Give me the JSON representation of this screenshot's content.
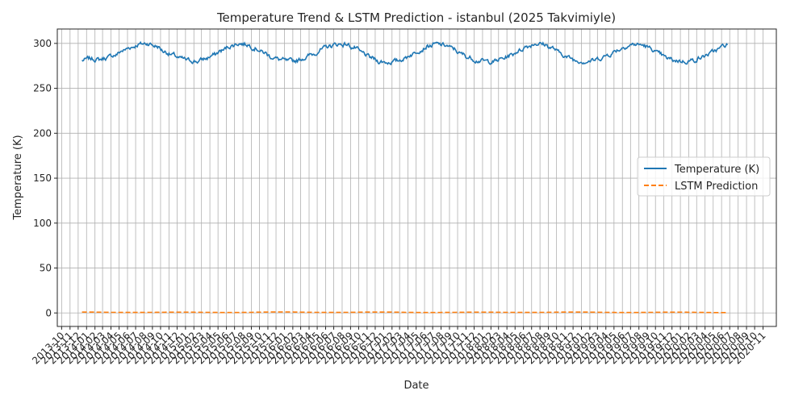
{
  "chart_data": {
    "type": "line",
    "title": "Temperature Trend & LSTM Prediction - istanbul (2025 Takvimiyle)",
    "xlabel": "Date",
    "ylabel": "Temperature (K)",
    "x_range": [
      "2013-09-15",
      "2020-12-20"
    ],
    "data_range": [
      "2013-12-15",
      "2020-06-25"
    ],
    "ylim": [
      -15,
      316
    ],
    "y_ticks": [
      0,
      50,
      100,
      150,
      200,
      250,
      300
    ],
    "x_ticks": [
      "2013-10",
      "2013-11",
      "2013-12",
      "2014-01",
      "2014-02",
      "2014-03",
      "2014-04",
      "2014-05",
      "2014-06",
      "2014-07",
      "2014-08",
      "2014-09",
      "2014-10",
      "2014-11",
      "2014-12",
      "2015-01",
      "2015-02",
      "2015-03",
      "2015-04",
      "2015-05",
      "2015-06",
      "2015-07",
      "2015-08",
      "2015-09",
      "2015-10",
      "2015-11",
      "2015-12",
      "2016-01",
      "2016-02",
      "2016-03",
      "2016-04",
      "2016-05",
      "2016-06",
      "2016-07",
      "2016-08",
      "2016-09",
      "2016-10",
      "2016-11",
      "2016-12",
      "2017-01",
      "2017-02",
      "2017-03",
      "2017-04",
      "2017-05",
      "2017-06",
      "2017-07",
      "2017-08",
      "2017-09",
      "2017-10",
      "2017-11",
      "2017-12",
      "2018-01",
      "2018-02",
      "2018-03",
      "2018-04",
      "2018-05",
      "2018-06",
      "2018-07",
      "2018-08",
      "2018-09",
      "2018-10",
      "2018-11",
      "2018-12",
      "2019-01",
      "2019-02",
      "2019-03",
      "2019-04",
      "2019-05",
      "2019-06",
      "2019-07",
      "2019-08",
      "2019-09",
      "2019-10",
      "2019-11",
      "2019-12",
      "2020-01",
      "2020-02",
      "2020-03",
      "2020-04",
      "2020-05",
      "2020-06",
      "2020-07",
      "2020-08",
      "2020-09",
      "2020-10",
      "2020-11"
    ],
    "grid": true,
    "legend_position": "center-right",
    "series": [
      {
        "name": "Temperature (K)",
        "color": "#1f77b4",
        "style": "solid",
        "x": [
          "2013-12",
          "2014-01",
          "2014-02",
          "2014-03",
          "2014-04",
          "2014-05",
          "2014-06",
          "2014-07",
          "2014-08",
          "2014-09",
          "2014-10",
          "2014-11",
          "2014-12",
          "2015-01",
          "2015-02",
          "2015-03",
          "2015-04",
          "2015-05",
          "2015-06",
          "2015-07",
          "2015-08",
          "2015-09",
          "2015-10",
          "2015-11",
          "2015-12",
          "2016-01",
          "2016-02",
          "2016-03",
          "2016-04",
          "2016-05",
          "2016-06",
          "2016-07",
          "2016-08",
          "2016-09",
          "2016-10",
          "2016-11",
          "2016-12",
          "2017-01",
          "2017-02",
          "2017-03",
          "2017-04",
          "2017-05",
          "2017-06",
          "2017-07",
          "2017-08",
          "2017-09",
          "2017-10",
          "2017-11",
          "2017-12",
          "2018-01",
          "2018-02",
          "2018-03",
          "2018-04",
          "2018-05",
          "2018-06",
          "2018-07",
          "2018-08",
          "2018-09",
          "2018-10",
          "2018-11",
          "2018-12",
          "2019-01",
          "2019-02",
          "2019-03",
          "2019-04",
          "2019-05",
          "2019-06",
          "2019-07",
          "2019-08",
          "2019-09",
          "2019-10",
          "2019-11",
          "2019-12",
          "2020-01",
          "2020-02",
          "2020-03",
          "2020-04",
          "2020-05",
          "2020-06"
        ],
        "values": [
          281,
          283,
          282,
          284,
          287,
          292,
          296,
          299,
          300,
          297,
          291,
          287,
          283,
          281,
          280,
          283,
          287,
          292,
          297,
          300,
          299,
          295,
          290,
          285,
          282,
          280,
          281,
          284,
          288,
          293,
          297,
          299,
          299,
          295,
          289,
          284,
          280,
          279,
          280,
          283,
          288,
          293,
          297,
          299,
          298,
          294,
          288,
          284,
          281,
          280,
          280,
          283,
          287,
          292,
          297,
          300,
          299,
          295,
          289,
          284,
          281,
          280,
          281,
          284,
          288,
          293,
          297,
          299,
          298,
          294,
          288,
          283,
          281,
          280,
          281,
          284,
          288,
          293,
          298
        ]
      },
      {
        "name": "LSTM Prediction",
        "color": "#ff7f0e",
        "style": "dashed",
        "x": [
          "2013-12",
          "2014-06",
          "2014-12",
          "2015-06",
          "2015-12",
          "2016-06",
          "2016-12",
          "2017-06",
          "2017-12",
          "2018-06",
          "2018-12",
          "2019-06",
          "2019-12",
          "2020-06"
        ],
        "values": [
          1.0,
          0.6,
          0.9,
          0.5,
          1.1,
          0.6,
          1.0,
          0.5,
          0.9,
          0.6,
          1.0,
          0.5,
          0.9,
          0.4
        ]
      }
    ]
  }
}
